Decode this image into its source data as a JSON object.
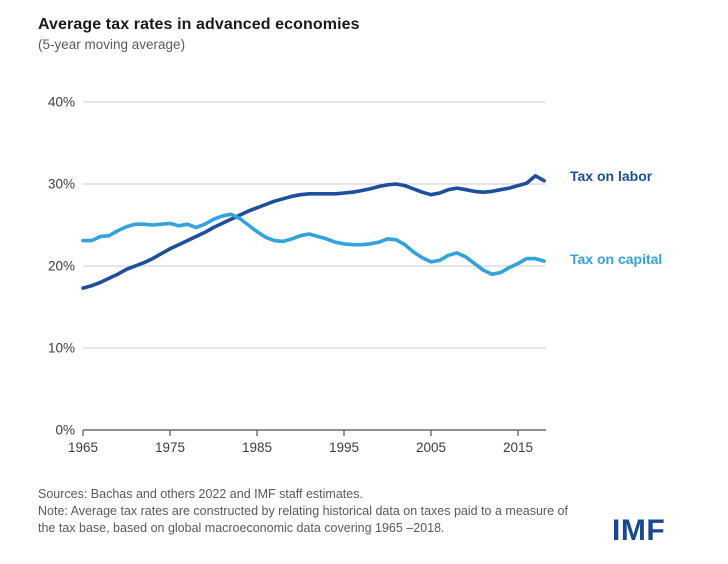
{
  "header": {
    "title": "Average tax rates in advanced economies",
    "subtitle": "(5-year moving average)"
  },
  "chart_data": {
    "type": "line",
    "title": "Average tax rates in advanced economies",
    "subtitle": "(5-year moving average)",
    "xlabel": "",
    "ylabel": "",
    "xlim": [
      1964,
      2019
    ],
    "ylim": [
      0,
      40
    ],
    "xticks": [
      1965,
      1975,
      1985,
      1995,
      2005,
      2015
    ],
    "xtick_labels": [
      "1965",
      "1975",
      "1985",
      "1995",
      "2005",
      "2015"
    ],
    "yticks": [
      0,
      10,
      20,
      30,
      40
    ],
    "ytick_labels": [
      "0%",
      "10%",
      "20%",
      "30%",
      "40%"
    ],
    "grid": "horizontal",
    "legend_position": "right-of-line-ends",
    "x": [
      1965,
      1966,
      1967,
      1968,
      1969,
      1970,
      1971,
      1972,
      1973,
      1974,
      1975,
      1976,
      1977,
      1978,
      1979,
      1980,
      1981,
      1982,
      1983,
      1984,
      1985,
      1986,
      1987,
      1988,
      1989,
      1990,
      1991,
      1992,
      1993,
      1994,
      1995,
      1996,
      1997,
      1998,
      1999,
      2000,
      2001,
      2002,
      2003,
      2004,
      2005,
      2006,
      2007,
      2008,
      2009,
      2010,
      2011,
      2012,
      2013,
      2014,
      2015,
      2016,
      2017,
      2018
    ],
    "series": [
      {
        "name": "Tax on labor",
        "color": "#1c4f9c",
        "values": [
          17.3,
          17.6,
          18.0,
          18.5,
          19.0,
          19.6,
          20.0,
          20.4,
          20.9,
          21.5,
          22.1,
          22.6,
          23.1,
          23.6,
          24.1,
          24.7,
          25.2,
          25.7,
          26.2,
          26.7,
          27.1,
          27.5,
          27.9,
          28.2,
          28.5,
          28.7,
          28.8,
          28.8,
          28.8,
          28.8,
          28.9,
          29.0,
          29.2,
          29.4,
          29.7,
          29.9,
          30.0,
          29.8,
          29.4,
          29.0,
          28.7,
          28.9,
          29.3,
          29.5,
          29.3,
          29.1,
          29.0,
          29.1,
          29.3,
          29.5,
          29.8,
          30.1,
          31.0,
          30.4
        ]
      },
      {
        "name": "Tax on capital",
        "color": "#32a3db",
        "values": [
          23.1,
          23.1,
          23.6,
          23.7,
          24.3,
          24.8,
          25.1,
          25.1,
          25.0,
          25.1,
          25.2,
          24.9,
          25.1,
          24.7,
          25.1,
          25.7,
          26.1,
          26.3,
          25.8,
          25.0,
          24.2,
          23.5,
          23.1,
          23.0,
          23.3,
          23.7,
          23.9,
          23.6,
          23.3,
          22.9,
          22.7,
          22.6,
          22.6,
          22.7,
          22.9,
          23.3,
          23.2,
          22.6,
          21.7,
          21.0,
          20.5,
          20.7,
          21.3,
          21.6,
          21.1,
          20.3,
          19.5,
          19.0,
          19.2,
          19.8,
          20.3,
          20.9,
          20.9,
          20.6
        ]
      }
    ]
  },
  "footer": {
    "sources": "Sources: Bachas and others 2022 and IMF staff estimates.",
    "note": "Note: Average tax rates are constructed by relating historical data on taxes paid to a measure of the tax base, based on global macroeconomic data  covering 1965 –2018.",
    "logo": "IMF"
  },
  "colors": {
    "gridline": "#d8d8d8",
    "axis": "#6b6b6b",
    "tick_text": "#3d3d3d",
    "title_text": "#1a1a1a",
    "muted_text": "#5a5a5a",
    "logo_blue": "#18498f"
  }
}
